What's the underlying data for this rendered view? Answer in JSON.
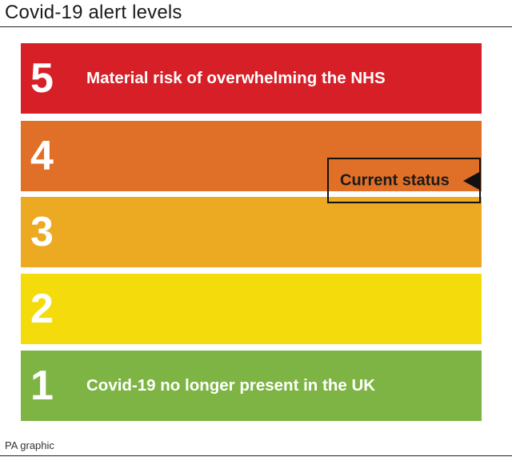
{
  "title": "Covid-19 alert levels",
  "levels": [
    {
      "number": "5",
      "label": "Material risk of overwhelming the NHS",
      "color": "#d71f27"
    },
    {
      "number": "4",
      "label": "",
      "color": "#e06f27"
    },
    {
      "number": "3",
      "label": "",
      "color": "#ebaa22"
    },
    {
      "number": "2",
      "label": "",
      "color": "#f4dc0c"
    },
    {
      "number": "1",
      "label": "Covid-19 no longer present in the UK",
      "color": "#7db443"
    }
  ],
  "current_status": {
    "label": "Current status",
    "between_levels": [
      "4",
      "3"
    ]
  },
  "credit": "PA graphic"
}
